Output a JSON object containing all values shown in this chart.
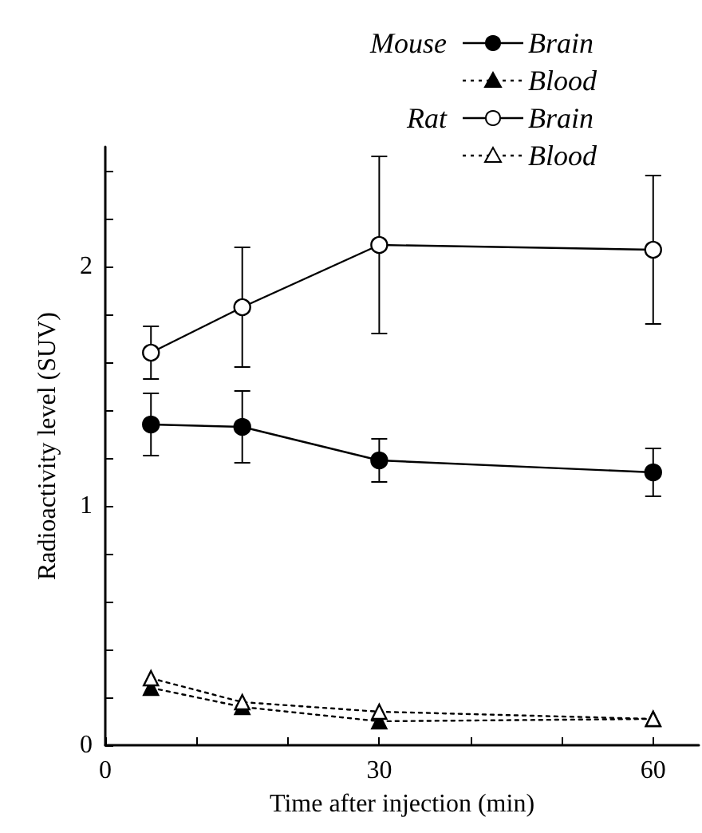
{
  "chart_data": {
    "type": "line",
    "xlabel": "Time after injection (min)",
    "ylabel": "Radioactivity level (SUV)",
    "x": [
      5,
      15,
      30,
      60
    ],
    "xlim": [
      0,
      65
    ],
    "xticks": [
      0,
      {
        "value": 10,
        "label": null
      },
      {
        "value": 20,
        "label": null
      },
      30,
      {
        "value": 40,
        "label": null
      },
      {
        "value": 50,
        "label": null
      },
      60
    ],
    "ylim": [
      0,
      2.5
    ],
    "yticks": [
      0,
      {
        "value": 0.2,
        "label": null
      },
      {
        "value": 0.4,
        "label": null
      },
      {
        "value": 0.6,
        "label": null
      },
      {
        "value": 0.8,
        "label": null
      },
      1,
      {
        "value": 1.2,
        "label": null
      },
      {
        "value": 1.4,
        "label": null
      },
      {
        "value": 1.6,
        "label": null
      },
      {
        "value": 1.8,
        "label": null
      },
      2,
      {
        "value": 2.2,
        "label": null
      },
      {
        "value": 2.4,
        "label": null
      }
    ],
    "grid": false,
    "legend": "top right",
    "annotations": [
      "Mouse",
      "Rat"
    ],
    "series": [
      {
        "name": "Brain",
        "color": "#000000",
        "marker": "circle",
        "line_style": "solid",
        "values": [
          1.34,
          1.33,
          1.19,
          1.14
        ],
        "errors": [
          0.13,
          0.15,
          0.09,
          0.1
        ]
      },
      {
        "name": "Blood",
        "color": "#000000",
        "marker": "triangle",
        "line_style": "dotted",
        "values": [
          0.24,
          0.16,
          0.1,
          0.11
        ]
      },
      {
        "name": "Brain",
        "color": "#000000",
        "marker": "circle",
        "line_style": "solid",
        "values": [
          1.64,
          1.83,
          2.09,
          2.07
        ],
        "errors": [
          0.11,
          0.25,
          0.37,
          0.31
        ]
      },
      {
        "name": "Blood",
        "color": "#000000",
        "marker": "triangle",
        "line_style": "dotted",
        "values": [
          0.28,
          0.18,
          0.14,
          0.11
        ]
      }
    ]
  }
}
